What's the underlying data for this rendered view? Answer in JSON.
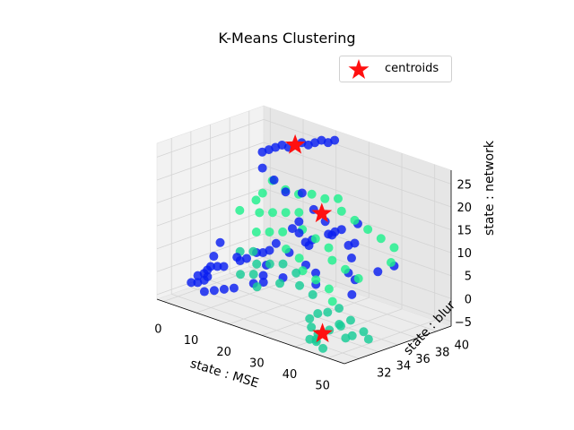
{
  "chart_data": {
    "type": "scatter",
    "projection": "3d",
    "title": "K-Means Clustering",
    "xlabel": "state : MSE",
    "ylabel": "state : blur",
    "zlabel": "state : network",
    "xlim": [
      -2,
      55
    ],
    "ylim": [
      30.5,
      41.5
    ],
    "zlim": [
      -6,
      28
    ],
    "xticks": [
      "0",
      "10",
      "20",
      "30",
      "40",
      "50"
    ],
    "yticks": [
      "32",
      "34",
      "36",
      "38",
      "40"
    ],
    "zticks": [
      "−5",
      "0",
      "5",
      "10",
      "15",
      "20",
      "25"
    ],
    "grid": true,
    "legend": {
      "position": "top-right",
      "entries": [
        "centroids"
      ]
    },
    "colors": {
      "cluster_blue": "#0a1ff0",
      "cluster_green": "#1ef08c",
      "cluster_teal": "#16cc96",
      "centroid": "#ff1010"
    },
    "clusters": [
      {
        "color": "cluster_blue",
        "points": [
          [
            2,
            40,
            20
          ],
          [
            4,
            40,
            21
          ],
          [
            6,
            40,
            22
          ],
          [
            8,
            40,
            23
          ],
          [
            10,
            40,
            23
          ],
          [
            12,
            40,
            24
          ],
          [
            14,
            40,
            25
          ],
          [
            16,
            40,
            25
          ],
          [
            18,
            40,
            26
          ],
          [
            20,
            40,
            27
          ],
          [
            22,
            40,
            27
          ],
          [
            24,
            40,
            28
          ],
          [
            5,
            39,
            18
          ],
          [
            10,
            38.5,
            17
          ],
          [
            15,
            38,
            16
          ],
          [
            20,
            38,
            17
          ],
          [
            25,
            37.5,
            15
          ],
          [
            30,
            37,
            14
          ],
          [
            35,
            36,
            13
          ],
          [
            40,
            36,
            12
          ],
          [
            1,
            36,
            3
          ],
          [
            2,
            35,
            1
          ],
          [
            3,
            34,
            -1
          ],
          [
            4,
            34,
            0
          ],
          [
            5,
            33,
            -2
          ],
          [
            6,
            33,
            -1
          ],
          [
            8,
            34,
            1
          ],
          [
            10,
            35,
            2
          ],
          [
            12,
            35,
            3
          ],
          [
            14,
            36,
            4
          ],
          [
            16,
            36,
            5
          ],
          [
            18,
            35,
            3
          ],
          [
            20,
            34,
            2
          ],
          [
            22,
            36,
            6
          ],
          [
            24,
            37,
            8
          ],
          [
            26,
            37,
            9
          ],
          [
            28,
            38,
            10
          ],
          [
            30,
            38,
            11
          ],
          [
            32,
            38,
            12
          ],
          [
            34,
            39,
            13
          ],
          [
            36,
            38,
            10
          ],
          [
            38,
            37,
            8
          ],
          [
            40,
            36,
            6
          ],
          [
            42,
            36,
            5
          ],
          [
            44,
            35,
            3
          ],
          [
            20,
            37,
            10
          ],
          [
            22,
            37,
            12
          ],
          [
            25,
            36,
            11
          ],
          [
            28,
            36,
            9
          ],
          [
            18,
            36,
            7
          ],
          [
            15,
            35,
            5
          ],
          [
            12,
            34,
            4
          ],
          [
            9,
            33,
            2
          ],
          [
            6,
            32,
            0
          ],
          [
            4,
            32,
            -2
          ],
          [
            3,
            33,
            -3
          ],
          [
            2,
            34,
            -2
          ],
          [
            30,
            35,
            6
          ],
          [
            33,
            35,
            5
          ],
          [
            36,
            34,
            4
          ],
          [
            26,
            34,
            3
          ],
          [
            23,
            33,
            2
          ],
          [
            20,
            33,
            1
          ],
          [
            17,
            32,
            0
          ],
          [
            14,
            32,
            -1
          ],
          [
            11,
            32,
            -2
          ],
          [
            8,
            32,
            -3
          ],
          [
            46,
            37,
            7
          ],
          [
            48,
            38,
            8
          ]
        ]
      },
      {
        "color": "cluster_green",
        "points": [
          [
            8,
            39,
            16
          ],
          [
            12,
            39,
            15
          ],
          [
            16,
            39,
            15
          ],
          [
            20,
            39,
            16
          ],
          [
            24,
            39,
            16
          ],
          [
            28,
            39,
            17
          ],
          [
            32,
            38,
            16
          ],
          [
            36,
            38,
            15
          ],
          [
            40,
            38,
            14
          ],
          [
            44,
            38,
            13
          ],
          [
            48,
            38,
            12
          ],
          [
            50,
            37,
            10
          ],
          [
            10,
            37,
            11
          ],
          [
            14,
            37,
            12
          ],
          [
            18,
            37,
            13
          ],
          [
            22,
            37,
            14
          ],
          [
            26,
            36,
            12
          ],
          [
            30,
            36,
            11
          ],
          [
            34,
            36,
            10
          ],
          [
            38,
            35,
            9
          ],
          [
            42,
            35,
            8
          ],
          [
            46,
            35,
            7
          ],
          [
            12,
            36,
            8
          ],
          [
            16,
            36,
            9
          ],
          [
            20,
            36,
            10
          ],
          [
            24,
            35,
            8
          ],
          [
            28,
            35,
            7
          ],
          [
            32,
            34,
            6
          ],
          [
            36,
            34,
            5
          ],
          [
            40,
            34,
            4
          ],
          [
            44,
            33,
            3
          ],
          [
            8,
            38,
            14
          ],
          [
            6,
            38,
            12
          ],
          [
            4,
            37,
            10
          ]
        ]
      },
      {
        "color": "cluster_teal",
        "points": [
          [
            10,
            35,
            4
          ],
          [
            14,
            35,
            5
          ],
          [
            18,
            34,
            4
          ],
          [
            22,
            34,
            5
          ],
          [
            26,
            34,
            6
          ],
          [
            30,
            34,
            5
          ],
          [
            34,
            33,
            4
          ],
          [
            38,
            33,
            3
          ],
          [
            16,
            33,
            2
          ],
          [
            20,
            33,
            3
          ],
          [
            24,
            32,
            2
          ],
          [
            28,
            33,
            3
          ],
          [
            40,
            32,
            -1
          ],
          [
            42,
            31.5,
            -2
          ],
          [
            44,
            31.5,
            -3
          ],
          [
            46,
            32,
            -2
          ],
          [
            48,
            32.5,
            -1
          ],
          [
            50,
            33,
            -3
          ],
          [
            52,
            33.5,
            -2
          ],
          [
            45,
            31,
            -4
          ],
          [
            47,
            31,
            -5
          ],
          [
            43,
            31,
            -4
          ],
          [
            49,
            32,
            0
          ],
          [
            51,
            32.5,
            1
          ],
          [
            41,
            32.5,
            0
          ],
          [
            44,
            32.5,
            1
          ],
          [
            46,
            33,
            2
          ],
          [
            48,
            33,
            -4
          ],
          [
            42,
            32,
            -5
          ],
          [
            52,
            34,
            -4
          ]
        ]
      }
    ],
    "centroids": [
      [
        44.5,
        31.8,
        -3
      ],
      [
        12,
        40,
        24
      ],
      [
        26,
        38,
        14
      ]
    ]
  }
}
